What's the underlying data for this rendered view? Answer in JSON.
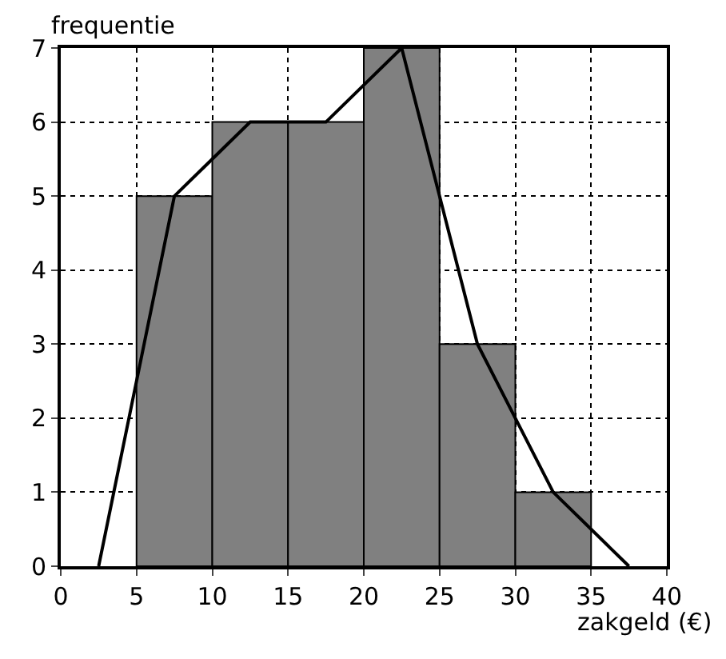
{
  "chart_data": {
    "type": "histogram",
    "xlabel": "zakgeld (€)",
    "ylabel": "frequentie",
    "bins": [
      5,
      10,
      15,
      20,
      25,
      30,
      35
    ],
    "values": [
      5,
      6,
      6,
      7,
      3,
      1
    ],
    "color": "#808080",
    "series": [
      {
        "type": "line",
        "x": [
          2.5,
          7.5,
          12.5,
          17.5,
          22.5,
          27.5,
          32.5,
          37.5
        ],
        "values": [
          0,
          5,
          6,
          6,
          7,
          3,
          1,
          0
        ],
        "color": "#000000"
      }
    ],
    "xlim": [
      0,
      40
    ],
    "ylim": [
      0,
      7
    ],
    "xticks": [
      0,
      5,
      10,
      15,
      20,
      25,
      30,
      35,
      40
    ],
    "yticks": [
      0,
      1,
      2,
      3,
      4,
      5,
      6,
      7
    ],
    "grid": true,
    "marker": "none",
    "line_style": "solid"
  }
}
